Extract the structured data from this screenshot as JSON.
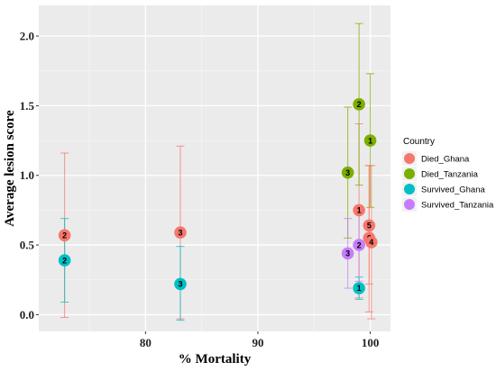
{
  "chart_data": {
    "type": "scatter",
    "title": "",
    "xlabel": "% Mortality",
    "ylabel": "Average lesion score",
    "xlim": [
      70.5,
      101.8
    ],
    "ylim": [
      -0.12,
      2.22
    ],
    "xticks": [
      80,
      90,
      100
    ],
    "yticks": [
      0.0,
      0.5,
      1.0,
      1.5,
      2.0
    ],
    "ytick_labels": [
      "0.0",
      "0.5",
      "1.0",
      "1.5",
      "2.0"
    ],
    "grid": true,
    "legend": {
      "title": "Country",
      "position": "right"
    },
    "series": [
      {
        "name": "Died_Ghana",
        "color": "#F8766D",
        "points": [
          {
            "x": 72.8,
            "y": 0.57,
            "ymin": -0.02,
            "ymax": 1.16,
            "label": "2"
          },
          {
            "x": 83.1,
            "y": 0.59,
            "ymin": -0.03,
            "ymax": 1.21,
            "label": "3"
          },
          {
            "x": 99.0,
            "y": 0.75,
            "ymin": 0.12,
            "ymax": 1.37,
            "label": "1"
          },
          {
            "x": 99.9,
            "y": 0.64,
            "ymin": 0.22,
            "ymax": 1.07,
            "label": "5"
          },
          {
            "x": 99.9,
            "y": 0.55,
            "ymin": 0.02,
            "ymax": 1.07,
            "label": "6"
          },
          {
            "x": 100.1,
            "y": 0.52,
            "ymin": -0.03,
            "ymax": 1.07,
            "label": "4"
          }
        ]
      },
      {
        "name": "Died_Tanzania",
        "color": "#7CAE00",
        "points": [
          {
            "x": 98.0,
            "y": 1.02,
            "ymin": 0.55,
            "ymax": 1.49,
            "label": "3"
          },
          {
            "x": 99.0,
            "y": 1.51,
            "ymin": 0.93,
            "ymax": 2.09,
            "label": "2"
          },
          {
            "x": 100.0,
            "y": 1.25,
            "ymin": 0.77,
            "ymax": 1.73,
            "label": "1"
          }
        ]
      },
      {
        "name": "Survived_Ghana",
        "color": "#00BFC4",
        "points": [
          {
            "x": 72.8,
            "y": 0.39,
            "ymin": 0.09,
            "ymax": 0.69,
            "label": "2"
          },
          {
            "x": 83.1,
            "y": 0.22,
            "ymin": -0.04,
            "ymax": 0.49,
            "label": "3"
          },
          {
            "x": 99.0,
            "y": 0.19,
            "ymin": 0.11,
            "ymax": 0.27,
            "label": "1"
          }
        ]
      },
      {
        "name": "Survived_Tanzania",
        "color": "#C77CFF",
        "points": [
          {
            "x": 98.0,
            "y": 0.44,
            "ymin": 0.19,
            "ymax": 0.69,
            "label": "3"
          },
          {
            "x": 99.0,
            "y": 0.5,
            "ymin": 0.24,
            "ymax": 0.76,
            "label": "2"
          }
        ]
      }
    ]
  }
}
